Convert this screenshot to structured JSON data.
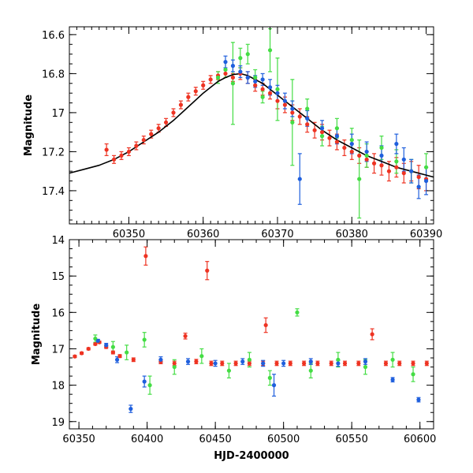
{
  "colors": {
    "red": "#ee3322",
    "green": "#44dd44",
    "blue": "#1f5fdd",
    "model": "#000000"
  },
  "chart_data": [
    {
      "type": "scatter",
      "ylabel": "Magnitude",
      "xlabel": "",
      "xlim": [
        60342,
        60391
      ],
      "ylim": [
        17.57,
        16.56
      ],
      "y_inverted": true,
      "xticks": [
        60350,
        60360,
        60370,
        60380,
        60390
      ],
      "xtick_labels": [
        "60350",
        "60360",
        "60370",
        "60380",
        "60390"
      ],
      "yticks": [
        16.6,
        16.8,
        17.0,
        17.2,
        17.4
      ],
      "ytick_labels": [
        "16.6",
        "16.8",
        "17",
        "17.2",
        "17.4"
      ],
      "model_curve": {
        "x": [
          60342,
          60344,
          60346,
          60348,
          60350,
          60352,
          60354,
          60356,
          60358,
          60360,
          60362,
          60363,
          60364,
          60365,
          60366,
          60368,
          60370,
          60372,
          60374,
          60376,
          60378,
          60380,
          60382,
          60384,
          60386,
          60388,
          60390,
          60391
        ],
        "y": [
          17.31,
          17.29,
          17.27,
          17.24,
          17.2,
          17.15,
          17.1,
          17.04,
          16.97,
          16.9,
          16.84,
          16.82,
          16.805,
          16.8,
          16.81,
          16.85,
          16.91,
          16.97,
          17.03,
          17.09,
          17.14,
          17.18,
          17.22,
          17.25,
          17.28,
          17.3,
          17.32,
          17.33
        ]
      },
      "series": [
        {
          "color": "red",
          "x": [
            60347,
            60348,
            60349,
            60350,
            60351,
            60352,
            60353,
            60354,
            60355,
            60356,
            60357,
            60358,
            60359,
            60360,
            60361,
            60362,
            60363,
            60364,
            60365,
            60366,
            60367,
            60368,
            60369,
            60370,
            60371,
            60372,
            60373,
            60374,
            60375,
            60376,
            60377,
            60378,
            60379,
            60380,
            60381,
            60382,
            60383,
            60384,
            60385,
            60386,
            60387,
            60388,
            60389,
            60390
          ],
          "y": [
            17.19,
            17.24,
            17.22,
            17.2,
            17.17,
            17.14,
            17.11,
            17.08,
            17.05,
            17.0,
            16.96,
            16.92,
            16.89,
            16.86,
            16.83,
            16.81,
            16.8,
            16.82,
            16.8,
            16.82,
            16.86,
            16.88,
            16.9,
            16.94,
            16.96,
            17.0,
            17.02,
            17.06,
            17.09,
            17.1,
            17.13,
            17.15,
            17.18,
            17.2,
            17.22,
            17.24,
            17.26,
            17.27,
            17.3,
            17.28,
            17.31,
            17.3,
            17.33,
            17.34
          ],
          "err": [
            0.03,
            0.02,
            0.02,
            0.02,
            0.02,
            0.02,
            0.02,
            0.02,
            0.02,
            0.02,
            0.02,
            0.02,
            0.02,
            0.02,
            0.02,
            0.02,
            0.02,
            0.02,
            0.03,
            0.03,
            0.03,
            0.03,
            0.03,
            0.04,
            0.04,
            0.04,
            0.04,
            0.04,
            0.04,
            0.04,
            0.04,
            0.04,
            0.04,
            0.04,
            0.04,
            0.04,
            0.05,
            0.05,
            0.05,
            0.05,
            0.05,
            0.05,
            0.06,
            0.06
          ]
        },
        {
          "color": "green",
          "x": [
            60362,
            60363,
            60364,
            60365,
            60366,
            60367,
            60368,
            60369,
            60370,
            60372,
            60374,
            60376,
            60378,
            60380,
            60381,
            60382,
            60384,
            60386,
            60388,
            60390
          ],
          "y": [
            16.82,
            16.78,
            16.85,
            16.72,
            16.7,
            16.82,
            16.92,
            16.68,
            16.88,
            17.05,
            16.98,
            17.12,
            17.08,
            17.14,
            17.34,
            17.22,
            17.18,
            17.25,
            17.3,
            17.28
          ],
          "err": [
            0.03,
            0.04,
            0.21,
            0.05,
            0.05,
            0.04,
            0.03,
            0.11,
            0.16,
            0.22,
            0.05,
            0.05,
            0.05,
            0.06,
            0.2,
            0.06,
            0.06,
            0.06,
            0.06,
            0.07
          ]
        },
        {
          "color": "blue",
          "x": [
            60363,
            60364,
            60365,
            60366,
            60367,
            60368,
            60369,
            60370,
            60371,
            60372,
            60373,
            60374,
            60376,
            60378,
            60380,
            60382,
            60384,
            60386,
            60387,
            60388,
            60389,
            60390
          ],
          "y": [
            16.74,
            16.76,
            16.79,
            16.82,
            16.84,
            16.83,
            16.87,
            16.9,
            16.94,
            16.98,
            17.34,
            17.03,
            17.08,
            17.12,
            17.16,
            17.2,
            17.22,
            17.16,
            17.24,
            17.3,
            17.38,
            17.35
          ],
          "err": [
            0.03,
            0.03,
            0.03,
            0.03,
            0.03,
            0.03,
            0.04,
            0.04,
            0.04,
            0.04,
            0.13,
            0.04,
            0.04,
            0.04,
            0.05,
            0.05,
            0.05,
            0.05,
            0.06,
            0.06,
            0.06,
            0.07
          ]
        }
      ]
    },
    {
      "type": "scatter",
      "ylabel": "Magnitude",
      "xlabel": "HJD-2400000",
      "xlim": [
        60343,
        60610
      ],
      "ylim": [
        19.2,
        14.0
      ],
      "y_inverted": true,
      "xticks": [
        60350,
        60400,
        60450,
        60500,
        60550,
        60600
      ],
      "xtick_labels": [
        "60350",
        "60400",
        "60450",
        "60500",
        "60550",
        "60600"
      ],
      "yticks": [
        14,
        15,
        16,
        17,
        18,
        19
      ],
      "ytick_labels": [
        "14",
        "15",
        "16",
        "17",
        "18",
        "19"
      ],
      "series": [
        {
          "color": "red",
          "x": [
            60347,
            60352,
            60357,
            60362,
            60365,
            60370,
            60375,
            60380,
            60390,
            60399,
            60410,
            60420,
            60428,
            60436,
            60444,
            60447,
            60455,
            60465,
            60475,
            60485,
            60487,
            60495,
            60505,
            60515,
            60525,
            60535,
            60545,
            60555,
            60565,
            60575,
            60585,
            60595,
            60605
          ],
          "y": [
            17.21,
            17.12,
            17.0,
            16.87,
            16.82,
            16.95,
            17.1,
            17.2,
            17.3,
            14.45,
            17.35,
            17.4,
            16.65,
            17.35,
            14.85,
            17.4,
            17.4,
            17.4,
            17.4,
            17.4,
            16.35,
            17.4,
            17.4,
            17.4,
            17.4,
            17.4,
            17.4,
            17.4,
            16.6,
            17.4,
            17.4,
            17.4,
            17.4
          ],
          "err": [
            0.03,
            0.03,
            0.03,
            0.03,
            0.03,
            0.04,
            0.04,
            0.04,
            0.05,
            0.25,
            0.06,
            0.06,
            0.08,
            0.06,
            0.25,
            0.06,
            0.06,
            0.06,
            0.06,
            0.06,
            0.2,
            0.06,
            0.06,
            0.06,
            0.06,
            0.06,
            0.06,
            0.06,
            0.15,
            0.06,
            0.06,
            0.06,
            0.06
          ]
        },
        {
          "color": "green",
          "x": [
            60362,
            60375,
            60385,
            60398,
            60402,
            60420,
            60440,
            60460,
            60475,
            60490,
            60510,
            60520,
            60540,
            60560,
            60580,
            60595
          ],
          "y": [
            16.72,
            16.95,
            17.1,
            16.75,
            18.0,
            17.5,
            17.2,
            17.6,
            17.3,
            17.8,
            16.0,
            17.6,
            17.3,
            17.5,
            17.3,
            17.7
          ],
          "err": [
            0.1,
            0.15,
            0.2,
            0.2,
            0.25,
            0.2,
            0.2,
            0.2,
            0.2,
            0.2,
            0.1,
            0.2,
            0.2,
            0.2,
            0.2,
            0.2
          ]
        },
        {
          "color": "blue",
          "x": [
            60364,
            60370,
            60378,
            60388,
            60398,
            60410,
            60430,
            60450,
            60470,
            60485,
            60493,
            60500,
            60520,
            60540,
            60560,
            60580,
            60599
          ],
          "y": [
            16.78,
            16.9,
            17.3,
            18.65,
            17.9,
            17.3,
            17.35,
            17.4,
            17.35,
            17.4,
            18.0,
            17.4,
            17.35,
            17.4,
            17.35,
            17.85,
            18.4
          ],
          "err": [
            0.04,
            0.05,
            0.08,
            0.1,
            0.15,
            0.08,
            0.08,
            0.08,
            0.08,
            0.08,
            0.3,
            0.08,
            0.08,
            0.08,
            0.08,
            0.06,
            0.06
          ]
        }
      ]
    }
  ]
}
